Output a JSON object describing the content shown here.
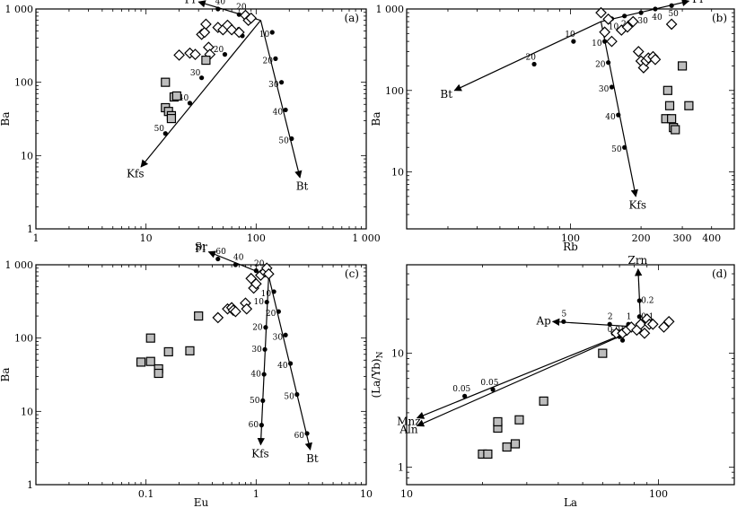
{
  "chart_data": [
    {
      "type": "scatter",
      "panel": "(a)",
      "xlabel": "Sr",
      "ylabel": "Ba",
      "xscale": "log",
      "yscale": "log",
      "xlim": [
        1,
        1000
      ],
      "ylim": [
        1,
        1000
      ],
      "xticks": [
        1,
        10,
        100,
        1000
      ],
      "xtick_labels": [
        "1",
        "10",
        "100",
        "1 000"
      ],
      "yticks": [
        1,
        10,
        100,
        1000
      ],
      "ytick_labels": [
        "1",
        "10",
        "100",
        "1 000"
      ],
      "series": [
        {
          "marker": "diamond",
          "x": [
            20,
            25,
            28,
            32,
            34,
            35,
            37,
            38,
            45,
            50,
            55,
            60,
            70,
            80,
            85,
            90
          ],
          "y": [
            235,
            250,
            240,
            450,
            480,
            620,
            300,
            240,
            560,
            520,
            600,
            520,
            480,
            820,
            700,
            750
          ]
        },
        {
          "marker": "square",
          "x": [
            15,
            15,
            16,
            17,
            17,
            18,
            19,
            35
          ],
          "y": [
            100,
            45,
            40,
            35,
            32,
            63,
            65,
            200
          ]
        }
      ],
      "vectors": [
        {
          "label": "Pl",
          "start": [
            110,
            700
          ],
          "end": [
            30,
            1250
          ],
          "steps": [
            {
              "label": "20",
              "x": 70,
              "y": 840
            },
            {
              "label": "40",
              "x": 45,
              "y": 1000
            }
          ]
        },
        {
          "label": "Kfs",
          "start": [
            110,
            700
          ],
          "end": [
            9,
            7
          ],
          "steps": [
            {
              "label": "10",
              "x": 75,
              "y": 430
            },
            {
              "label": "20",
              "x": 52,
              "y": 240
            },
            {
              "label": "30",
              "x": 32,
              "y": 115
            },
            {
              "label": "40",
              "x": 25,
              "y": 52
            },
            {
              "label": "50",
              "x": 15,
              "y": 20
            }
          ]
        },
        {
          "label": "Bt",
          "start": [
            110,
            700
          ],
          "end": [
            250,
            5
          ],
          "steps": [
            {
              "label": "10",
              "x": 140,
              "y": 480
            },
            {
              "label": "20",
              "x": 150,
              "y": 210
            },
            {
              "label": "30",
              "x": 170,
              "y": 100
            },
            {
              "label": "40",
              "x": 185,
              "y": 42
            },
            {
              "label": "50",
              "x": 210,
              "y": 17
            }
          ]
        }
      ]
    },
    {
      "type": "scatter",
      "panel": "(b)",
      "xlabel": "Rb",
      "ylabel": "Ba",
      "xscale": "log",
      "yscale": "log",
      "xlim": [
        20,
        500
      ],
      "ylim": [
        2,
        1000
      ],
      "xticks": [
        100,
        200,
        300,
        400
      ],
      "xtick_labels": [
        "100",
        "200",
        "300",
        "400"
      ],
      "yticks": [
        10,
        100,
        1000
      ],
      "ytick_labels": [
        "10",
        "100",
        "1 000"
      ],
      "series": [
        {
          "marker": "diamond",
          "x": [
            135,
            140,
            145,
            150,
            165,
            175,
            185,
            195,
            200,
            205,
            210,
            215,
            225,
            230,
            270
          ],
          "y": [
            900,
            520,
            750,
            400,
            550,
            600,
            700,
            300,
            230,
            190,
            230,
            250,
            260,
            240,
            650
          ]
        },
        {
          "marker": "square",
          "x": [
            255,
            260,
            265,
            270,
            275,
            280,
            300,
            320
          ],
          "y": [
            45,
            100,
            65,
            45,
            35,
            33,
            200,
            65
          ]
        }
      ],
      "vectors": [
        {
          "label": "Pl",
          "start": [
            135,
            700
          ],
          "end": [
            320,
            1250
          ],
          "steps": [
            {
              "label": "10",
              "x": 150,
              "y": 760
            },
            {
              "label": "20",
              "x": 170,
              "y": 820
            },
            {
              "label": "30",
              "x": 200,
              "y": 900
            },
            {
              "label": "40",
              "x": 230,
              "y": 1000
            },
            {
              "label": "50",
              "x": 270,
              "y": 1100
            }
          ]
        },
        {
          "label": "Bt",
          "start": [
            135,
            700
          ],
          "end": [
            32,
            100
          ],
          "steps": [
            {
              "label": "10",
              "x": 103,
              "y": 400
            },
            {
              "label": "20",
              "x": 70,
              "y": 210
            }
          ]
        },
        {
          "label": "Kfs",
          "start": [
            135,
            700
          ],
          "end": [
            190,
            5
          ],
          "steps": [
            {
              "label": "10",
              "x": 140,
              "y": 400
            },
            {
              "label": "20",
              "x": 145,
              "y": 220
            },
            {
              "label": "30",
              "x": 150,
              "y": 110
            },
            {
              "label": "40",
              "x": 160,
              "y": 50
            },
            {
              "label": "50",
              "x": 170,
              "y": 20
            }
          ]
        }
      ]
    },
    {
      "type": "scatter",
      "panel": "(c)",
      "xlabel": "Eu",
      "ylabel": "Ba",
      "xscale": "log",
      "yscale": "log",
      "xlim": [
        0.01,
        10
      ],
      "ylim": [
        1,
        1000
      ],
      "xticks": [
        0.1,
        1,
        10
      ],
      "xtick_labels": [
        "0.1",
        "1",
        "10"
      ],
      "yticks": [
        1,
        10,
        100,
        1000
      ],
      "ytick_labels": [
        "1",
        "10",
        "100",
        "1 000"
      ],
      "series": [
        {
          "marker": "diamond",
          "x": [
            0.45,
            0.55,
            0.6,
            0.62,
            0.65,
            0.8,
            0.82,
            0.9,
            0.95,
            1.0,
            1.1,
            1.2,
            1.25,
            1.3
          ],
          "y": [
            190,
            250,
            260,
            240,
            230,
            300,
            250,
            650,
            480,
            550,
            720,
            800,
            900,
            750
          ]
        },
        {
          "marker": "square",
          "x": [
            0.09,
            0.11,
            0.11,
            0.13,
            0.13,
            0.16,
            0.25,
            0.3
          ],
          "y": [
            47,
            48,
            100,
            38,
            33,
            65,
            67,
            200
          ]
        }
      ],
      "vectors": [
        {
          "label": "Pl",
          "start": [
            1.3,
            700
          ],
          "end": [
            0.37,
            1500
          ],
          "steps": [
            {
              "label": "20",
              "x": 1.0,
              "y": 830
            },
            {
              "label": "40",
              "x": 0.65,
              "y": 1000
            },
            {
              "label": "60",
              "x": 0.45,
              "y": 1200
            }
          ]
        },
        {
          "label": "Kfs",
          "start": [
            1.3,
            700
          ],
          "end": [
            1.1,
            3.5
          ],
          "steps": [
            {
              "label": "10",
              "x": 1.25,
              "y": 310
            },
            {
              "label": "20",
              "x": 1.22,
              "y": 140
            },
            {
              "label": "30",
              "x": 1.2,
              "y": 70
            },
            {
              "label": "40",
              "x": 1.18,
              "y": 32
            },
            {
              "label": "50",
              "x": 1.15,
              "y": 14
            },
            {
              "label": "60",
              "x": 1.12,
              "y": 6.5
            }
          ]
        },
        {
          "label": "Bt",
          "start": [
            1.3,
            700
          ],
          "end": [
            3.1,
            3
          ],
          "steps": [
            {
              "label": "10",
              "x": 1.45,
              "y": 430
            },
            {
              "label": "20",
              "x": 1.6,
              "y": 230
            },
            {
              "label": "30",
              "x": 1.85,
              "y": 110
            },
            {
              "label": "40",
              "x": 2.05,
              "y": 45
            },
            {
              "label": "50",
              "x": 2.35,
              "y": 17
            },
            {
              "label": "60",
              "x": 2.9,
              "y": 5
            }
          ]
        }
      ]
    },
    {
      "type": "scatter",
      "panel": "(d)",
      "xlabel": "La",
      "ylabel": "(La/Yb)",
      "ylabel_sub": "N",
      "xscale": "log",
      "yscale": "log",
      "xlim": [
        10,
        200
      ],
      "ylim": [
        0.7,
        60
      ],
      "xticks": [
        10,
        100
      ],
      "xtick_labels": [
        "10",
        "100"
      ],
      "yticks": [
        1,
        10
      ],
      "ytick_labels": [
        "1",
        "10"
      ],
      "series": [
        {
          "marker": "diamond",
          "x": [
            68,
            72,
            75,
            78,
            82,
            85,
            88,
            90,
            92,
            95,
            105,
            110
          ],
          "y": [
            15,
            15,
            16,
            17,
            16,
            18,
            15,
            20,
            18,
            18,
            17,
            19
          ]
        },
        {
          "marker": "square",
          "x": [
            20,
            21,
            23,
            23,
            25,
            27,
            28,
            35,
            60
          ],
          "y": [
            1.3,
            1.3,
            2.2,
            2.5,
            1.5,
            1.6,
            2.6,
            3.8,
            10
          ]
        }
      ],
      "vectors": [
        {
          "label": "Zrn",
          "start": [
            85,
            17
          ],
          "end": [
            83,
            55
          ],
          "steps": [
            {
              "label": "0.1",
              "x": 84,
              "y": 21
            },
            {
              "label": "0.2",
              "x": 84,
              "y": 29
            }
          ]
        },
        {
          "label": "Ap",
          "start": [
            85,
            17
          ],
          "end": [
            38,
            19
          ],
          "steps": [
            {
              "label": "1",
              "x": 76,
              "y": 18
            },
            {
              "label": "2",
              "x": 64,
              "y": 18
            },
            {
              "label": "5",
              "x": 42,
              "y": 19
            }
          ]
        },
        {
          "label": "Mnz",
          "start": [
            85,
            17
          ],
          "end": [
            11,
            2.7
          ],
          "steps": [
            {
              "label": "0.01",
              "x": 70,
              "y": 14
            },
            {
              "label": "0.05",
              "x": 17,
              "y": 4.2
            }
          ]
        },
        {
          "label": "Aln",
          "start": [
            85,
            17
          ],
          "end": [
            11,
            2.3
          ],
          "steps": [
            {
              "label": "0.01",
              "x": 72,
              "y": 13
            },
            {
              "label": "0.05",
              "x": 22,
              "y": 4.8
            }
          ]
        }
      ]
    }
  ]
}
